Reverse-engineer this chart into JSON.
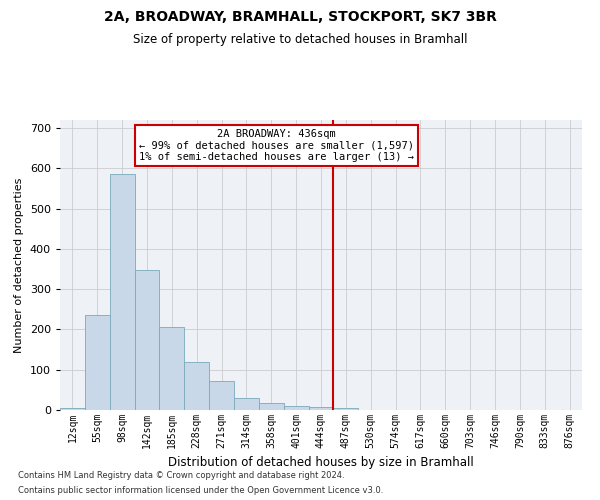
{
  "title": "2A, BROADWAY, BRAMHALL, STOCKPORT, SK7 3BR",
  "subtitle": "Size of property relative to detached houses in Bramhall",
  "xlabel": "Distribution of detached houses by size in Bramhall",
  "ylabel": "Number of detached properties",
  "footer_line1": "Contains HM Land Registry data © Crown copyright and database right 2024.",
  "footer_line2": "Contains public sector information licensed under the Open Government Licence v3.0.",
  "bar_labels": [
    "12sqm",
    "55sqm",
    "98sqm",
    "142sqm",
    "185sqm",
    "228sqm",
    "271sqm",
    "314sqm",
    "358sqm",
    "401sqm",
    "444sqm",
    "487sqm",
    "530sqm",
    "574sqm",
    "617sqm",
    "660sqm",
    "703sqm",
    "746sqm",
    "790sqm",
    "833sqm",
    "876sqm"
  ],
  "bar_values": [
    5,
    237,
    587,
    347,
    205,
    118,
    72,
    30,
    17,
    10,
    8,
    5,
    1,
    0,
    0,
    0,
    0,
    0,
    0,
    0,
    0
  ],
  "bar_color": "#c8d8e8",
  "bar_edge_color": "#7aaabb",
  "grid_color": "#cccccc",
  "bg_color": "#eef2f7",
  "vline_x_index": 10.5,
  "vline_color": "#cc0000",
  "annotation_text": "2A BROADWAY: 436sqm\n← 99% of detached houses are smaller (1,597)\n1% of semi-detached houses are larger (13) →",
  "annotation_box_color": "#cc0000",
  "ylim": [
    0,
    720
  ],
  "yticks": [
    0,
    100,
    200,
    300,
    400,
    500,
    600,
    700
  ]
}
